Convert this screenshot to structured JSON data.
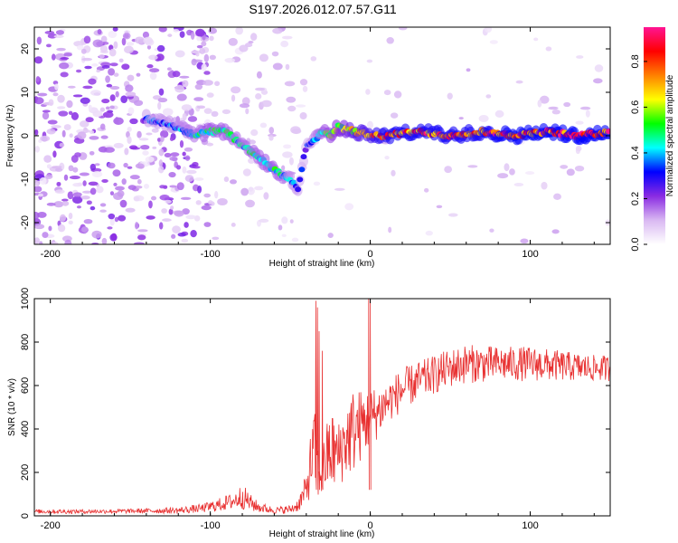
{
  "title": "S197.2026.012.07.57.G11",
  "chart_data": [
    {
      "type": "heatmap",
      "name": "spectrogram",
      "xlabel": "Height of straight line (km)",
      "ylabel": "Frequency (Hz)",
      "xlim": [
        -210,
        150
      ],
      "ylim": [
        -25,
        25
      ],
      "xticks": [
        -200,
        -100,
        0,
        100
      ],
      "yticks": [
        -20,
        -10,
        0,
        10,
        20
      ],
      "colorbar": {
        "label": "Normalized spectral amplitude",
        "range": [
          0,
          0.95
        ],
        "ticks": [
          0,
          0.2,
          0.4,
          0.6,
          0.8
        ],
        "colors": [
          "#ffffff",
          "#d9b8f2",
          "#8a2be2",
          "#0000ff",
          "#00ffff",
          "#00ff00",
          "#ffff00",
          "#ff8000",
          "#ff0000",
          "#ff1493"
        ]
      },
      "ridge": {
        "x": [
          -140,
          -120,
          -110,
          -100,
          -90,
          -80,
          -70,
          -60,
          -50,
          -45,
          -40,
          -35,
          -30,
          -25,
          -20,
          -10,
          0,
          10,
          30,
          50,
          70,
          90,
          110,
          130,
          150
        ],
        "y": [
          4,
          2,
          0,
          1,
          1,
          -2,
          -5,
          -8,
          -10,
          -12,
          -2,
          -1,
          1,
          0,
          2,
          1,
          0,
          0,
          1,
          0,
          1,
          0,
          1,
          0,
          1
        ],
        "amplitude": [
          0.35,
          0.4,
          0.45,
          0.5,
          0.5,
          0.45,
          0.5,
          0.5,
          0.4,
          0.35,
          0.3,
          0.4,
          0.5,
          0.55,
          0.6,
          0.7,
          0.75,
          0.85,
          0.85,
          0.85,
          0.85,
          0.9,
          0.9,
          0.9,
          0.9
        ]
      }
    },
    {
      "type": "line",
      "name": "snr",
      "xlabel": "Height of straight line (km)",
      "ylabel": "SNR (10 * v/v)",
      "xlim": [
        -210,
        150
      ],
      "ylim": [
        0,
        1000
      ],
      "xticks": [
        -200,
        -100,
        0,
        100
      ],
      "yticks": [
        0,
        200,
        400,
        600,
        800,
        1000
      ],
      "color": "#e83030",
      "envelope": {
        "x": [
          -210,
          -180,
          -150,
          -120,
          -105,
          -95,
          -85,
          -80,
          -75,
          -70,
          -60,
          -50,
          -45,
          -40,
          -37,
          -35,
          -33,
          -30,
          -28,
          -25,
          -20,
          -15,
          -10,
          -5,
          0,
          5,
          10,
          20,
          30,
          40,
          50,
          60,
          80,
          100,
          120,
          140,
          150
        ],
        "mean": [
          20,
          20,
          22,
          25,
          35,
          50,
          70,
          90,
          60,
          40,
          25,
          30,
          50,
          120,
          250,
          300,
          220,
          200,
          250,
          300,
          280,
          350,
          400,
          420,
          450,
          480,
          520,
          580,
          620,
          650,
          680,
          700,
          700,
          700,
          690,
          680,
          680
        ],
        "amp": [
          10,
          10,
          10,
          15,
          20,
          30,
          40,
          60,
          40,
          25,
          15,
          20,
          30,
          80,
          150,
          200,
          150,
          120,
          150,
          200,
          150,
          180,
          200,
          160,
          140,
          120,
          100,
          100,
          90,
          90,
          90,
          90,
          80,
          80,
          70,
          60,
          60
        ]
      },
      "spikes": [
        {
          "x": -34,
          "y": 990
        },
        {
          "x": -33,
          "y": 960
        },
        {
          "x": -32,
          "y": 850
        },
        {
          "x": -30,
          "y": 760
        },
        {
          "x": -1,
          "y": 1000
        },
        {
          "x": 0,
          "y": 1000
        }
      ]
    }
  ]
}
